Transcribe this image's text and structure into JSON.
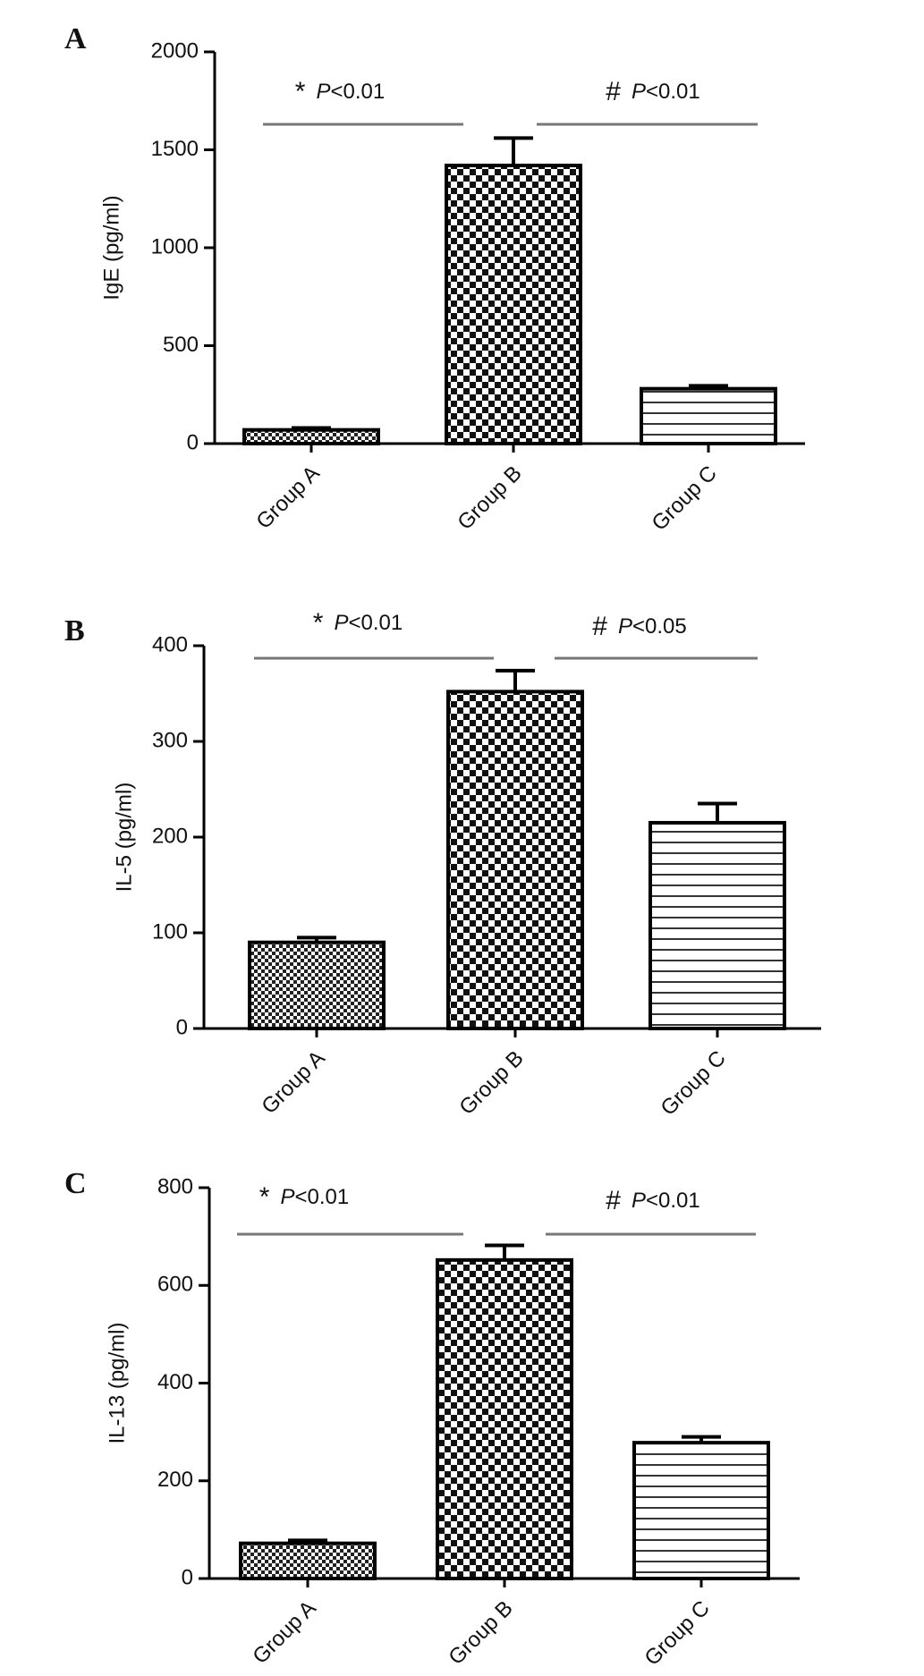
{
  "chart_data": [
    {
      "type": "bar",
      "panel_label": "A",
      "ylabel": "IgE (pg/ml)",
      "categories": [
        "Group A",
        "Group B",
        "Group C"
      ],
      "values": [
        70,
        1420,
        280
      ],
      "errors": [
        10,
        140,
        15
      ],
      "ylim": [
        0,
        2000
      ],
      "yticks": [
        0,
        500,
        1000,
        1500,
        2000
      ],
      "annotations": [
        {
          "symbol": "*",
          "p": "P",
          "threshold": "<0.01"
        },
        {
          "symbol": "#",
          "p": "P",
          "threshold": "<0.01"
        }
      ]
    },
    {
      "type": "bar",
      "panel_label": "B",
      "ylabel": "IL-5 (pg/ml)",
      "categories": [
        "Group A",
        "Group B",
        "Group C"
      ],
      "values": [
        90,
        352,
        215
      ],
      "errors": [
        5,
        22,
        20
      ],
      "ylim": [
        0,
        400
      ],
      "yticks": [
        0,
        100,
        200,
        300,
        400
      ],
      "annotations": [
        {
          "symbol": "*",
          "p": "P",
          "threshold": "<0.01"
        },
        {
          "symbol": "#",
          "p": "P",
          "threshold": "<0.05"
        }
      ]
    },
    {
      "type": "bar",
      "panel_label": "C",
      "ylabel": "IL-13 (pg/ml)",
      "categories": [
        "Group A",
        "Group B",
        "Group C"
      ],
      "values": [
        72,
        652,
        278
      ],
      "errors": [
        6,
        30,
        12
      ],
      "ylim": [
        0,
        800
      ],
      "yticks": [
        0,
        200,
        400,
        600,
        800
      ],
      "annotations": [
        {
          "symbol": "*",
          "p": "P",
          "threshold": "<0.01"
        },
        {
          "symbol": "#",
          "p": "P",
          "threshold": "<0.01"
        }
      ]
    }
  ]
}
